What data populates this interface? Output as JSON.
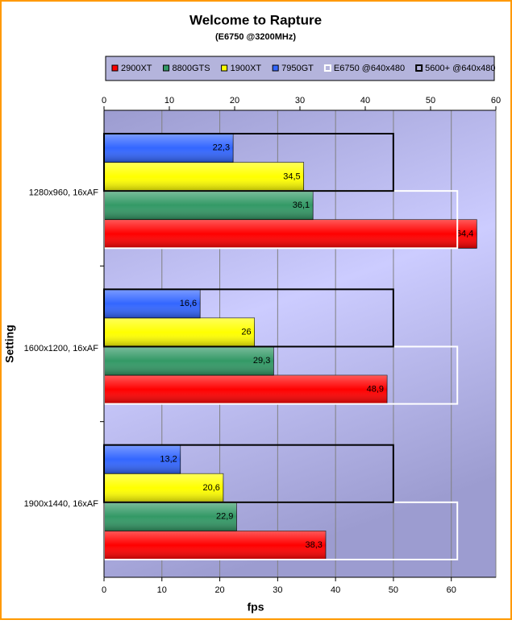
{
  "chart_data": {
    "type": "bar",
    "orientation": "horizontal",
    "title": "Welcome to Rapture",
    "subtitle": "(E6750 @3200MHz)",
    "x_label": "fps",
    "y_label": "Setting",
    "categories": [
      "1280x960, 16xAF",
      "1600x1200, 16xAF",
      "1900x1440, 16xAF"
    ],
    "series": [
      {
        "name": "2900XT",
        "color": "#ff0000",
        "values": [
          64.4,
          48.9,
          38.3
        ],
        "value_labels": [
          "64,4",
          "48,9",
          "38,3"
        ]
      },
      {
        "name": "8800GTS",
        "color": "#339966",
        "values": [
          36.1,
          29.3,
          22.9
        ],
        "value_labels": [
          "36,1",
          "29,3",
          "22,9"
        ]
      },
      {
        "name": "1900XT",
        "color": "#ffff00",
        "values": [
          34.5,
          26,
          20.6
        ],
        "value_labels": [
          "34,5",
          "26",
          "20,6"
        ]
      },
      {
        "name": "7950GT",
        "color": "#3366ff",
        "values": [
          22.3,
          16.6,
          13.2
        ],
        "value_labels": [
          "22,3",
          "16,6",
          "13,2"
        ]
      },
      {
        "name": "E6750 @640x480",
        "color": "#ffffff",
        "outline": true,
        "axis": "x2",
        "values": [
          54.1,
          54.1,
          54.1
        ]
      },
      {
        "name": "5600+ @640x480",
        "color": "#000000",
        "outline": true,
        "axis": "x2",
        "values": [
          44.3,
          44.3,
          44.3
        ]
      }
    ],
    "xlim": [
      0,
      67.7
    ],
    "xticks": [
      0,
      10,
      20,
      30,
      40,
      50,
      60
    ],
    "x2lim": [
      0,
      60
    ],
    "x2ticks": [
      0,
      10,
      20,
      30,
      40,
      50,
      60
    ],
    "grid": true,
    "legend": "top"
  }
}
